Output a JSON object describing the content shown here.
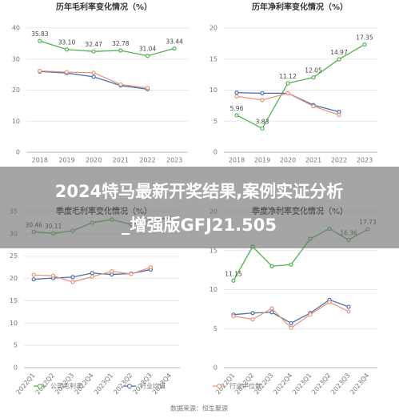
{
  "chart_data": [
    {
      "type": "line",
      "title": "历年毛利率变化情况（%）",
      "categories": [
        "2018",
        "2019",
        "2020",
        "2021",
        "2022",
        "2023"
      ],
      "ylim": [
        0,
        40
      ],
      "yticks": [
        0,
        10,
        20,
        30,
        40
      ],
      "grid": true,
      "series": [
        {
          "name": "公司毛利率",
          "color": "#52b152",
          "values": [
            35.83,
            33.1,
            32.47,
            32.78,
            31.04,
            33.44
          ],
          "value_labels": [
            "35.83",
            "33.10",
            "32.47",
            "32.78",
            "31.04",
            "33.44"
          ]
        },
        {
          "name": "行业均值",
          "color": "#4a6db5",
          "values": [
            26.0,
            25.5,
            24.3,
            21.5,
            20.3,
            null
          ]
        },
        {
          "name": "行业中位数",
          "color": "#e8977a",
          "values": [
            26.2,
            25.8,
            25.6,
            21.8,
            20.7,
            null
          ]
        }
      ]
    },
    {
      "type": "line",
      "title": "历年净利率变化情况（%）",
      "categories": [
        "2018",
        "2019",
        "2020",
        "2021",
        "2022",
        "2023"
      ],
      "ylim": [
        0,
        20
      ],
      "yticks": [
        0,
        5,
        10,
        15,
        20
      ],
      "grid": true,
      "series": [
        {
          "name": "公司毛利率",
          "color": "#52b152",
          "values": [
            5.96,
            3.83,
            11.12,
            12.05,
            14.97,
            17.35
          ],
          "value_labels": [
            "5.96",
            "3.83",
            "11.12",
            "12.05",
            "14.97",
            "17.35"
          ]
        },
        {
          "name": "行业均值",
          "color": "#4a6db5",
          "values": [
            9.6,
            9.5,
            9.5,
            7.6,
            6.5,
            null
          ]
        },
        {
          "name": "行业中位数",
          "color": "#e8977a",
          "values": [
            9.0,
            8.4,
            9.5,
            7.4,
            6.0,
            null
          ]
        }
      ]
    },
    {
      "type": "line",
      "title": "季度毛利率变化情况（%）",
      "categories": [
        "2022Q1",
        "2022Q2",
        "2022Q3",
        "2022Q4",
        "2023Q1",
        "2023Q2",
        "2023Q3",
        "2023Q4"
      ],
      "ylim": [
        0,
        35
      ],
      "yticks": [
        0,
        5,
        10,
        15,
        20,
        25,
        30,
        35
      ],
      "grid": true,
      "series": [
        {
          "name": "公司毛利率",
          "color": "#52b152",
          "values": [
            30.46,
            30.11,
            30.7,
            32.5,
            33.2,
            32.1,
            33.0,
            33.6
          ],
          "value_labels": [
            "30.46",
            "30.11",
            null,
            null,
            null,
            null,
            null,
            null
          ]
        },
        {
          "name": "行业均值",
          "color": "#4a6db5",
          "values": [
            19.8,
            20.1,
            20.3,
            21.2,
            20.9,
            21.1,
            22.0,
            null
          ]
        },
        {
          "name": "行业中位数",
          "color": "#e8977a",
          "values": [
            20.8,
            20.6,
            19.2,
            20.4,
            21.6,
            21.0,
            22.5,
            null
          ]
        }
      ]
    },
    {
      "type": "line",
      "title": "季度净利率变化情况（%）",
      "categories": [
        "2022Q1",
        "2022Q2",
        "2022Q3",
        "2022Q4",
        "2023Q1",
        "2023Q2",
        "2023Q3",
        "2023Q4"
      ],
      "ylim": [
        0,
        20
      ],
      "yticks": [
        0,
        5,
        10,
        15,
        20
      ],
      "grid": true,
      "series": [
        {
          "name": "公司毛利率",
          "color": "#52b152",
          "values": [
            11.15,
            15.5,
            13.0,
            13.2,
            16.5,
            17.8,
            16.36,
            17.73
          ],
          "value_labels": [
            "11.15",
            null,
            null,
            null,
            null,
            null,
            "16.36",
            "17.73"
          ]
        },
        {
          "name": "行业均值",
          "color": "#4a6db5",
          "values": [
            6.8,
            7.0,
            7.1,
            5.7,
            7.0,
            8.7,
            7.8,
            null
          ]
        },
        {
          "name": "行业中位数",
          "color": "#e8977a",
          "values": [
            6.6,
            6.2,
            7.6,
            5.1,
            6.8,
            8.4,
            7.2,
            null
          ]
        }
      ]
    }
  ],
  "banner": {
    "lines": [
      "2024特马最新开奖结果,案例实证分析",
      "_增强版GFJ21.505"
    ]
  },
  "source": "数据来源：恒生聚源"
}
